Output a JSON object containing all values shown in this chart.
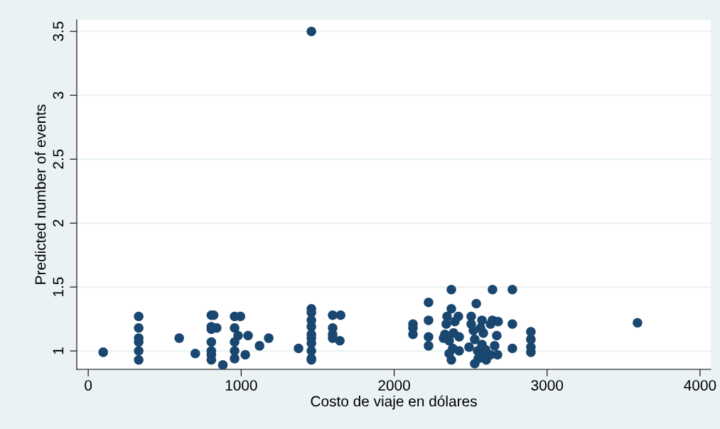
{
  "chart_data": {
    "type": "scatter",
    "xlabel": "Costo de viaje en dólares",
    "ylabel": "Predicted number of events",
    "xlim": [
      -75,
      4070
    ],
    "ylim": [
      0.856,
      3.59
    ],
    "xticks": [
      0,
      1000,
      2000,
      3000,
      4000
    ],
    "yticks": [
      1,
      1.5,
      2,
      2.5,
      3,
      3.5
    ],
    "grid": "y",
    "marker": "circle",
    "series": [
      {
        "color": "#1a476f",
        "x": [
          98,
          330,
          330,
          330,
          330,
          330,
          330,
          595,
          700,
          805,
          820,
          805,
          805,
          805,
          805,
          805,
          805,
          880,
          840,
          957,
          957,
          957,
          957,
          957,
          995,
          980,
          1027,
          1045,
          1120,
          1180,
          1375,
          1459,
          1459,
          1459,
          1459,
          1459,
          1459,
          1459,
          1459,
          1459,
          1459,
          1459,
          1598,
          1598,
          1598,
          1598,
          1650,
          1645,
          2123,
          2123,
          2123,
          2225,
          2225,
          2225,
          2225,
          2374,
          2374,
          2346,
          2341,
          2332,
          2360,
          2383,
          2360,
          2374,
          2420,
          2397,
          2425,
          2425,
          2323,
          2388,
          2537,
          2504,
          2504,
          2574,
          2630,
          2518,
          2583,
          2527,
          2574,
          2546,
          2574,
          2527,
          2602,
          2550,
          2565,
          2490,
          2643,
          2643,
          2680,
          2671,
          2597,
          2630,
          2676,
          2657,
          2773,
          2773,
          2773,
          2894,
          2894,
          2894,
          2894,
          3591
        ],
        "values": [
          0.99,
          1.27,
          1.18,
          1.1,
          1.07,
          1.0,
          0.93,
          1.1,
          0.98,
          1.28,
          1.28,
          1.19,
          1.17,
          1.07,
          1.0,
          0.97,
          0.93,
          0.89,
          1.18,
          1.27,
          1.18,
          1.07,
          1.0,
          0.94,
          1.27,
          1.12,
          0.97,
          1.12,
          1.04,
          1.1,
          1.02,
          3.5,
          1.33,
          1.3,
          1.24,
          1.19,
          1.13,
          1.1,
          1.06,
          1.0,
          0.94,
          0.93,
          1.28,
          1.18,
          1.13,
          1.1,
          1.28,
          1.08,
          1.21,
          1.18,
          1.13,
          1.38,
          1.24,
          1.11,
          1.04,
          1.48,
          1.33,
          1.27,
          1.21,
          1.13,
          1.08,
          1.02,
          0.98,
          0.93,
          1.27,
          1.23,
          1.11,
          1.0,
          1.1,
          1.14,
          1.37,
          1.27,
          1.21,
          1.24,
          1.21,
          1.16,
          1.14,
          1.09,
          1.05,
          1.0,
          0.97,
          0.9,
          0.93,
          0.94,
          1.18,
          1.03,
          1.48,
          1.24,
          1.23,
          1.12,
          1.01,
          0.97,
          0.97,
          1.04,
          1.48,
          1.21,
          1.02,
          1.15,
          1.09,
          1.03,
          0.99,
          1.22
        ]
      }
    ]
  }
}
